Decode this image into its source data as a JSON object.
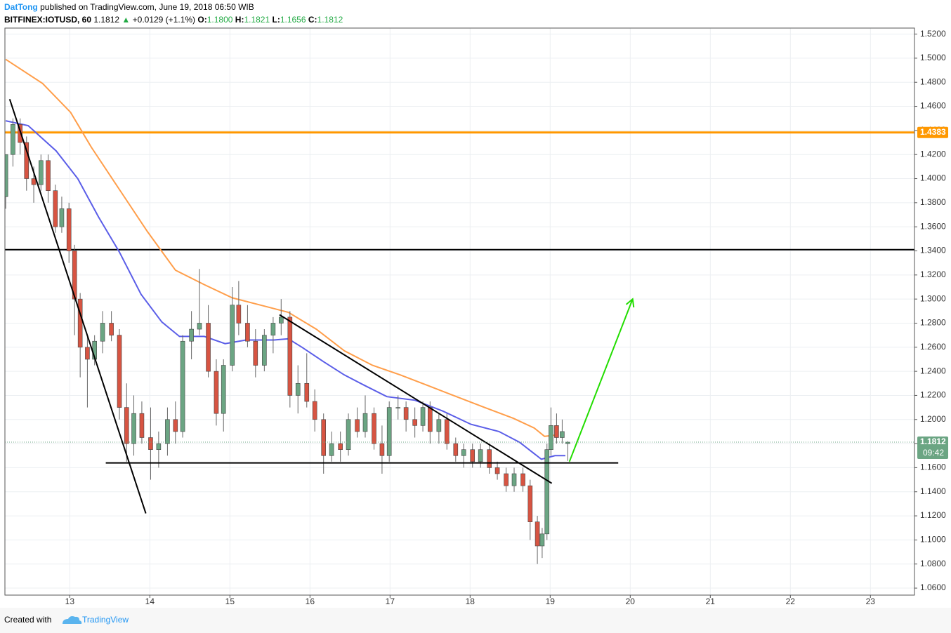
{
  "header": {
    "author": "DatTong",
    "published": "published on TradingView.com, June 19, 2018 06:50 WIB",
    "symbol": "BITFINEX:IOTUSD, 60",
    "last": "1.1812",
    "change": "+0.0129 (+1.1%)",
    "ohlc": [
      {
        "key": "O:",
        "value": "1.1800"
      },
      {
        "key": "H:",
        "value": "1.1821"
      },
      {
        "key": "L:",
        "value": "1.1656"
      },
      {
        "key": "C:",
        "value": "1.1812"
      }
    ]
  },
  "footer": {
    "created": "Created with",
    "brand": "TradingView"
  },
  "chart_data": {
    "type": "candlestick",
    "up_color": "#6ba583",
    "down_color": "#d75442",
    "grid": true,
    "xlim": [
      12.19,
      23.55
    ],
    "xticks": [
      13,
      14,
      15,
      16,
      17,
      18,
      19,
      20,
      21,
      22,
      23
    ],
    "ylim": [
      1.0542,
      1.525
    ],
    "yticks": [
      {
        "value": 1.06,
        "label": "1.0600"
      },
      {
        "value": 1.08,
        "label": "1.0800"
      },
      {
        "value": 1.1,
        "label": "1.1000"
      },
      {
        "value": 1.12,
        "label": "1.1200"
      },
      {
        "value": 1.14,
        "label": "1.1400"
      },
      {
        "value": 1.16,
        "label": "1.1600"
      },
      {
        "value": 1.18,
        "label": "1.1800"
      },
      {
        "value": 1.2,
        "label": "1.2000"
      },
      {
        "value": 1.22,
        "label": "1.2200"
      },
      {
        "value": 1.24,
        "label": "1.2400"
      },
      {
        "value": 1.26,
        "label": "1.2600"
      },
      {
        "value": 1.28,
        "label": "1.2800"
      },
      {
        "value": 1.3,
        "label": "1.3000"
      },
      {
        "value": 1.32,
        "label": "1.3200"
      },
      {
        "value": 1.34,
        "label": "1.3400"
      },
      {
        "value": 1.36,
        "label": "1.3600"
      },
      {
        "value": 1.38,
        "label": "1.3800"
      },
      {
        "value": 1.4,
        "label": "1.4000"
      },
      {
        "value": 1.42,
        "label": "1.4200"
      },
      {
        "value": 1.44,
        "label": "1.4400"
      },
      {
        "value": 1.46,
        "label": "1.4600"
      },
      {
        "value": 1.48,
        "label": "1.4800"
      },
      {
        "value": 1.5,
        "label": "1.5000"
      },
      {
        "value": 1.52,
        "label": "1.5200"
      }
    ],
    "candles": {
      "x": [
        12.2,
        12.29,
        12.38,
        12.46,
        12.55,
        12.64,
        12.73,
        12.82,
        12.9,
        12.99,
        13.06,
        13.13,
        13.22,
        13.31,
        13.41,
        13.52,
        13.62,
        13.71,
        13.8,
        13.9,
        14.01,
        14.11,
        14.22,
        14.32,
        14.41,
        14.52,
        14.62,
        14.73,
        14.83,
        14.92,
        15.03,
        15.11,
        15.22,
        15.32,
        15.43,
        15.54,
        15.64,
        15.75,
        15.85,
        15.96,
        16.06,
        16.17,
        16.27,
        16.38,
        16.48,
        16.59,
        16.69,
        16.8,
        16.9,
        16.99,
        17.1,
        17.2,
        17.31,
        17.41,
        17.5,
        17.61,
        17.71,
        17.82,
        17.92,
        18.03,
        18.13,
        18.24,
        18.34,
        18.45,
        18.55,
        18.66,
        18.75,
        18.84,
        18.9,
        18.96,
        19.01,
        19.08,
        19.15,
        19.22
      ],
      "open": [
        1.385,
        1.42,
        1.445,
        1.43,
        1.4,
        1.395,
        1.415,
        1.39,
        1.36,
        1.375,
        1.34,
        1.3,
        1.26,
        1.25,
        1.265,
        1.28,
        1.27,
        1.21,
        1.18,
        1.205,
        1.185,
        1.175,
        1.18,
        1.2,
        1.19,
        1.265,
        1.275,
        1.28,
        1.24,
        1.205,
        1.245,
        1.295,
        1.28,
        1.265,
        1.245,
        1.27,
        1.28,
        1.285,
        1.22,
        1.23,
        1.215,
        1.2,
        1.17,
        1.18,
        1.175,
        1.2,
        1.19,
        1.205,
        1.18,
        1.17,
        1.21,
        1.21,
        1.2,
        1.195,
        1.21,
        1.19,
        1.2,
        1.18,
        1.17,
        1.175,
        1.165,
        1.175,
        1.16,
        1.155,
        1.145,
        1.155,
        1.145,
        1.115,
        1.095,
        1.105,
        1.175,
        1.195,
        1.185,
        1.18
      ],
      "high": [
        1.42,
        1.45,
        1.45,
        1.435,
        1.41,
        1.42,
        1.42,
        1.395,
        1.385,
        1.38,
        1.345,
        1.305,
        1.27,
        1.27,
        1.29,
        1.29,
        1.275,
        1.23,
        1.22,
        1.215,
        1.21,
        1.19,
        1.21,
        1.215,
        1.27,
        1.29,
        1.325,
        1.295,
        1.25,
        1.25,
        1.31,
        1.315,
        1.295,
        1.275,
        1.275,
        1.285,
        1.3,
        1.29,
        1.245,
        1.255,
        1.225,
        1.205,
        1.19,
        1.19,
        1.205,
        1.21,
        1.22,
        1.21,
        1.195,
        1.215,
        1.22,
        1.215,
        1.21,
        1.215,
        1.215,
        1.205,
        1.205,
        1.185,
        1.18,
        1.18,
        1.18,
        1.18,
        1.165,
        1.16,
        1.16,
        1.16,
        1.15,
        1.12,
        1.11,
        1.18,
        1.21,
        1.205,
        1.2,
        1.1821
      ],
      "low": [
        1.375,
        1.41,
        1.42,
        1.39,
        1.38,
        1.39,
        1.38,
        1.355,
        1.355,
        1.33,
        1.27,
        1.235,
        1.21,
        1.245,
        1.255,
        1.265,
        1.2,
        1.165,
        1.17,
        1.18,
        1.15,
        1.16,
        1.17,
        1.18,
        1.185,
        1.25,
        1.27,
        1.235,
        1.195,
        1.19,
        1.24,
        1.27,
        1.26,
        1.235,
        1.24,
        1.255,
        1.27,
        1.21,
        1.205,
        1.21,
        1.19,
        1.155,
        1.165,
        1.165,
        1.17,
        1.185,
        1.185,
        1.175,
        1.155,
        1.165,
        1.2,
        1.19,
        1.185,
        1.19,
        1.18,
        1.18,
        1.175,
        1.165,
        1.16,
        1.16,
        1.16,
        1.155,
        1.15,
        1.14,
        1.14,
        1.14,
        1.1,
        1.08,
        1.085,
        1.1,
        1.17,
        1.18,
        1.18,
        1.1656
      ],
      "close": [
        1.42,
        1.445,
        1.43,
        1.4,
        1.395,
        1.415,
        1.39,
        1.36,
        1.375,
        1.34,
        1.3,
        1.26,
        1.25,
        1.265,
        1.28,
        1.27,
        1.21,
        1.18,
        1.205,
        1.185,
        1.175,
        1.18,
        1.2,
        1.19,
        1.265,
        1.275,
        1.28,
        1.24,
        1.205,
        1.245,
        1.295,
        1.28,
        1.265,
        1.245,
        1.27,
        1.28,
        1.285,
        1.22,
        1.23,
        1.215,
        1.2,
        1.17,
        1.18,
        1.175,
        1.2,
        1.19,
        1.205,
        1.18,
        1.17,
        1.21,
        1.21,
        1.2,
        1.195,
        1.21,
        1.19,
        1.2,
        1.18,
        1.17,
        1.175,
        1.165,
        1.175,
        1.16,
        1.155,
        1.145,
        1.155,
        1.145,
        1.115,
        1.095,
        1.105,
        1.175,
        1.195,
        1.185,
        1.19,
        1.1812
      ]
    },
    "moving_averages": [
      {
        "color": "#ff9e4a",
        "x": [
          12.2,
          12.66,
          13.01,
          13.27,
          13.62,
          13.97,
          14.32,
          14.68,
          15.03,
          15.38,
          15.73,
          16.08,
          16.43,
          16.78,
          17.13,
          17.48,
          17.83,
          18.18,
          18.54,
          18.8,
          18.93,
          19.06
        ],
        "values": [
          1.499,
          1.479,
          1.455,
          1.426,
          1.391,
          1.356,
          1.324,
          1.312,
          1.301,
          1.295,
          1.289,
          1.275,
          1.257,
          1.245,
          1.237,
          1.228,
          1.219,
          1.21,
          1.201,
          1.193,
          1.186,
          1.187
        ]
      },
      {
        "color": "#5b5ee8",
        "x": [
          12.2,
          12.48,
          12.83,
          13.1,
          13.36,
          13.62,
          13.89,
          14.15,
          14.37,
          14.68,
          14.94,
          15.2,
          15.55,
          15.73,
          15.9,
          16.17,
          16.43,
          16.69,
          16.96,
          17.31,
          17.66,
          18.01,
          18.36,
          18.62,
          18.89,
          19.06,
          19.19
        ],
        "values": [
          1.448,
          1.444,
          1.423,
          1.4,
          1.368,
          1.339,
          1.304,
          1.281,
          1.269,
          1.269,
          1.263,
          1.266,
          1.266,
          1.267,
          1.26,
          1.248,
          1.237,
          1.228,
          1.219,
          1.216,
          1.207,
          1.196,
          1.19,
          1.181,
          1.167,
          1.17,
          1.17
        ]
      }
    ],
    "levels": [
      {
        "value": 1.4383,
        "color": "#ff9800"
      },
      {
        "value": 1.341,
        "color": "#000000"
      }
    ],
    "drawings": [
      {
        "color": "#000000",
        "x": [
          12.25,
          13.95
        ],
        "y": [
          1.466,
          1.122
        ]
      },
      {
        "color": "#000000",
        "x": [
          13.45,
          19.85
        ],
        "y": [
          1.164,
          1.164
        ]
      },
      {
        "color": "#000000",
        "x": [
          15.62,
          19.02
        ],
        "y": [
          1.287,
          1.147
        ]
      },
      {
        "color": "#22dd00",
        "arrow": true,
        "x": [
          19.24,
          20.03
        ],
        "y": [
          1.165,
          1.3
        ]
      }
    ],
    "last_price": {
      "value": 1.1812,
      "countdown": "09:42",
      "color": "#6ba583"
    }
  }
}
